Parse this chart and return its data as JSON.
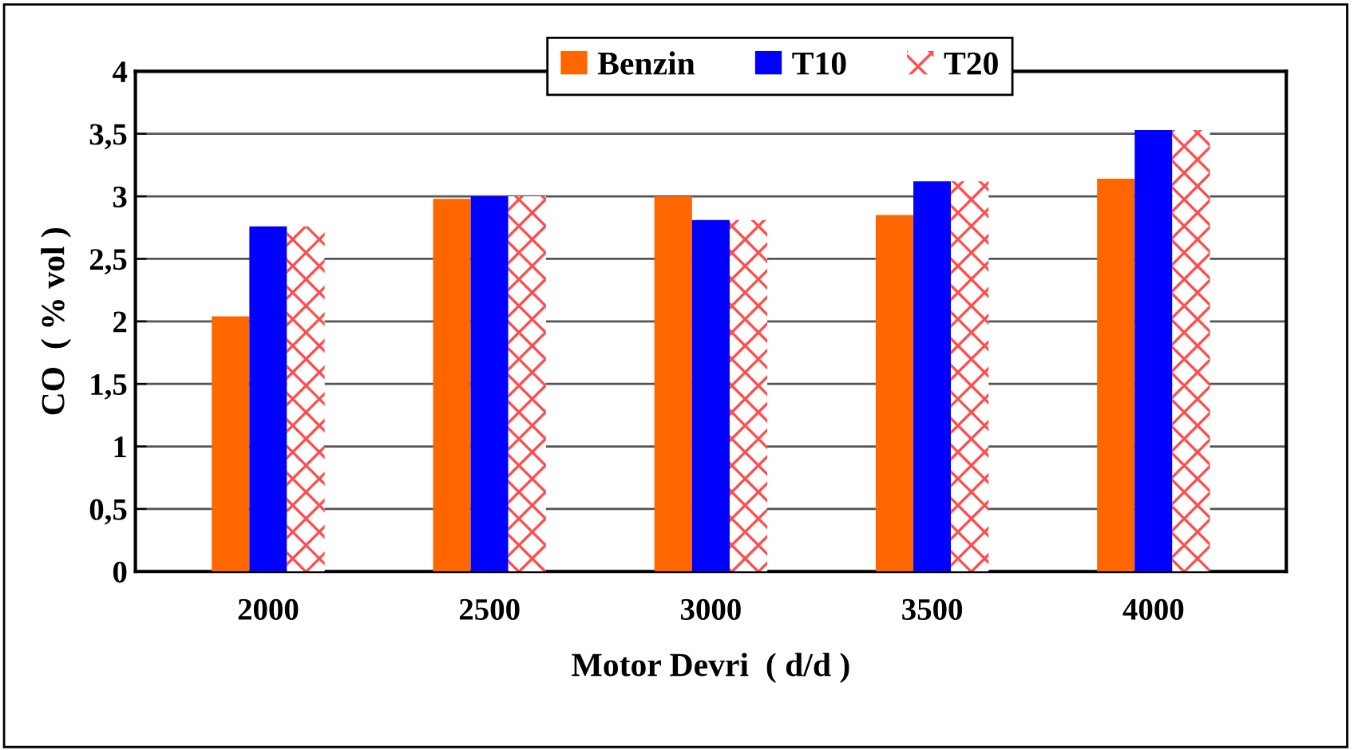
{
  "chart_data": {
    "type": "bar",
    "xlabel": "Motor Devri  ( d/d )",
    "ylabel": "CO  ( % vol )",
    "categories": [
      "2000",
      "2500",
      "3000",
      "3500",
      "4000"
    ],
    "series": [
      {
        "name": "Benzin",
        "color": "#ff6600",
        "values": [
          2.04,
          2.98,
          3.0,
          2.85,
          3.14
        ]
      },
      {
        "name": "T10",
        "color": "#0000ff",
        "values": [
          2.76,
          3.0,
          2.81,
          3.12,
          3.53
        ]
      },
      {
        "name": "T20",
        "color": "#ff4d4d",
        "values": [
          2.76,
          3.0,
          2.81,
          3.12,
          3.53
        ]
      }
    ],
    "ylim": [
      0,
      4
    ],
    "yticks": [
      0,
      {
        "value": 0.5,
        "label": "0,5"
      },
      1,
      {
        "value": 1.5,
        "label": "1,5"
      },
      2,
      {
        "value": 2.5,
        "label": "2,5"
      },
      3,
      {
        "value": 3.5,
        "label": "3,5"
      },
      4
    ],
    "grid": "y",
    "legend": "top"
  }
}
